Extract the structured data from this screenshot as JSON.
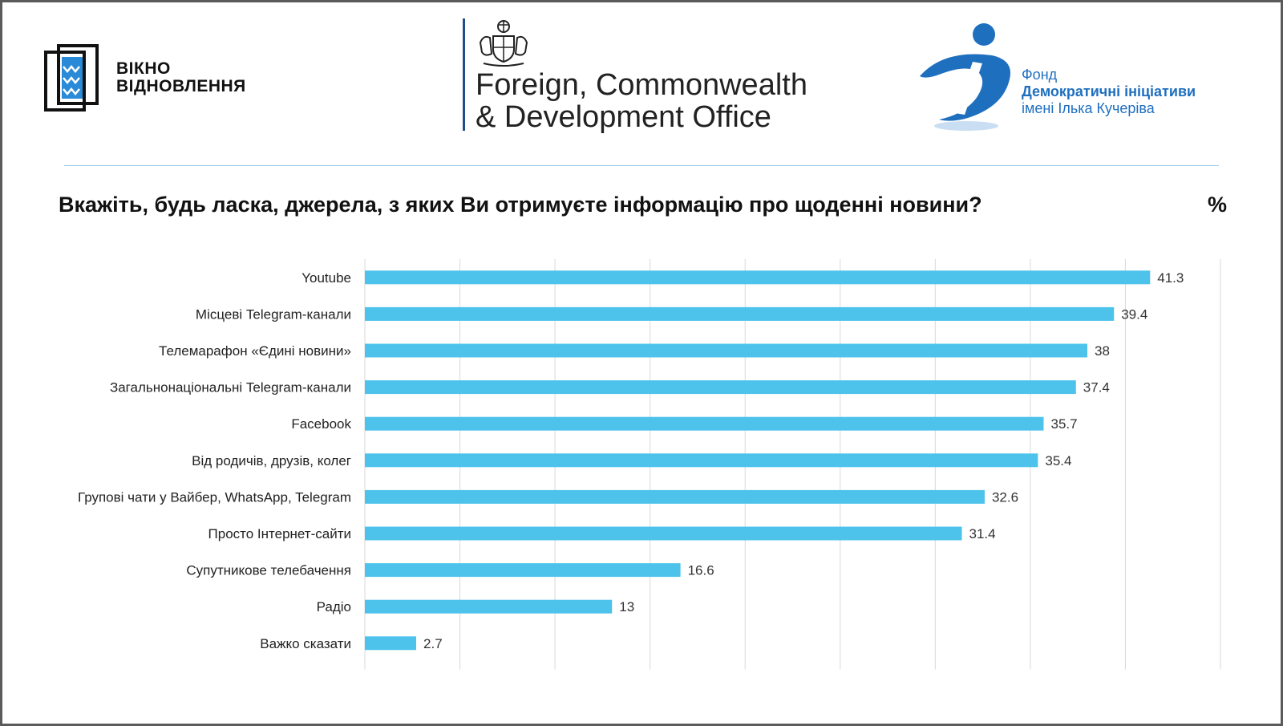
{
  "logos": {
    "vikno": {
      "line1": "ВІКНО",
      "line2": "ВІДНОВЛЕННЯ"
    },
    "fcdo": {
      "line1": "Foreign, Commonwealth",
      "line2": "& Development Office"
    },
    "dif": {
      "line1": "Фонд",
      "line2": "Демократичні ініціативи",
      "line3": "імені Ілька Кучеріва"
    }
  },
  "chart_data": {
    "type": "bar",
    "orientation": "horizontal",
    "title": "Вкажіть, будь ласка, джерела, з яких Ви отримуєте інформацію про щоденні новини?",
    "unit": "%",
    "categories": [
      "Youtube",
      "Місцеві Telegram-канали",
      "Телемарафон «Єдині новини»",
      "Загальнонаціональні Telegram-канали",
      "Facebook",
      "Від родичів, друзів, колег",
      "Групові чати у Вайбер, WhatsApp, Telegram",
      "Просто Інтернет-сайти",
      "Супутникове телебачення",
      "Радіо",
      "Важко сказати"
    ],
    "values": [
      41.3,
      39.4,
      38,
      37.4,
      35.7,
      35.4,
      32.6,
      31.4,
      16.6,
      13,
      2.7
    ],
    "value_labels": [
      "41.3",
      "39.4",
      "38",
      "37.4",
      "35.7",
      "35.4",
      "32.6",
      "31.4",
      "16.6",
      "13",
      "2.7"
    ],
    "xlim": [
      0,
      45
    ],
    "grid": true,
    "bar_color": "#4dc3ec"
  }
}
